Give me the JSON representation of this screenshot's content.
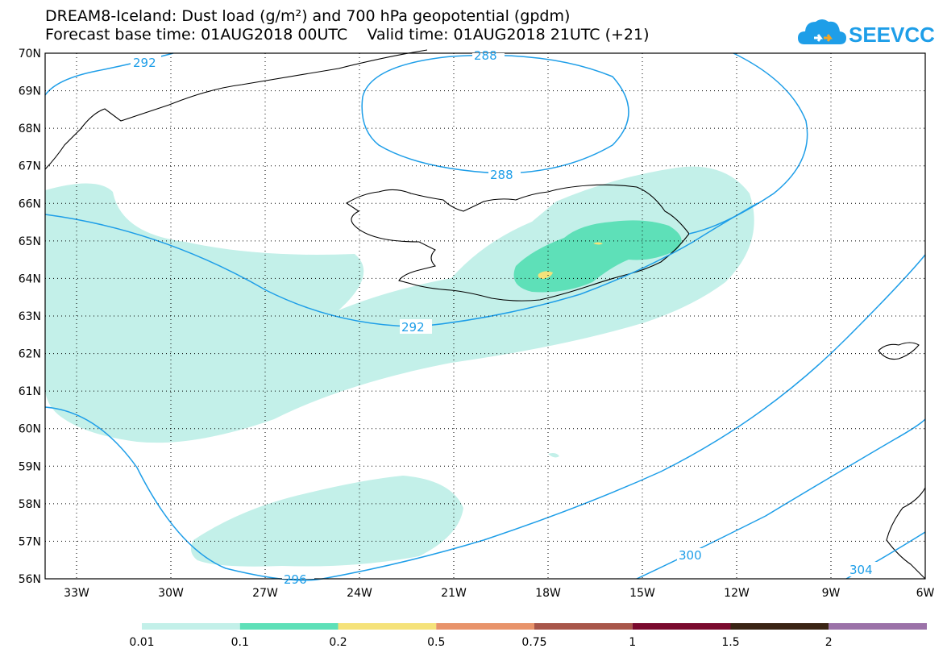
{
  "title": {
    "line1": "DREAM8-Iceland: Dust load (g/m²) and 700 hPa geopotential (gpdm)",
    "line2": "Forecast base time: 01AUG2018 00UTC    Valid time: 01AUG2018 21UTC (+21)"
  },
  "logo": {
    "text": "SEEVCCC",
    "color": "#1e9ee8",
    "icon": "cloud-icon"
  },
  "map": {
    "lat_labels": [
      "70N",
      "69N",
      "68N",
      "67N",
      "66N",
      "65N",
      "64N",
      "63N",
      "62N",
      "61N",
      "60N",
      "59N",
      "58N",
      "57N",
      "56N"
    ],
    "lon_labels": [
      "33W",
      "30W",
      "27W",
      "24W",
      "21W",
      "18W",
      "15W",
      "12W",
      "9W",
      "6W"
    ],
    "lat_range": [
      56,
      70
    ],
    "lon_range": [
      -34.0,
      -6.0
    ],
    "grid": "dotted",
    "contour_color": "#1e9ee8",
    "contour_labels": [
      "292",
      "288",
      "288",
      "292",
      "296",
      "300",
      "304"
    ]
  },
  "colorbar": {
    "ticks": [
      "0.01",
      "0.1",
      "0.2",
      "0.5",
      "0.75",
      "1",
      "1.5",
      "2"
    ],
    "colors": [
      "#c3f0e9",
      "#5ee0b8",
      "#f5e27a",
      "#e8936a",
      "#a8564a",
      "#7a0a2e",
      "#3a2414",
      "#9b72a8"
    ]
  },
  "colors": {
    "dust_low": "#c3f0e9",
    "dust_mid": "#5ee0b8",
    "dust_high": "#f5e27a"
  }
}
